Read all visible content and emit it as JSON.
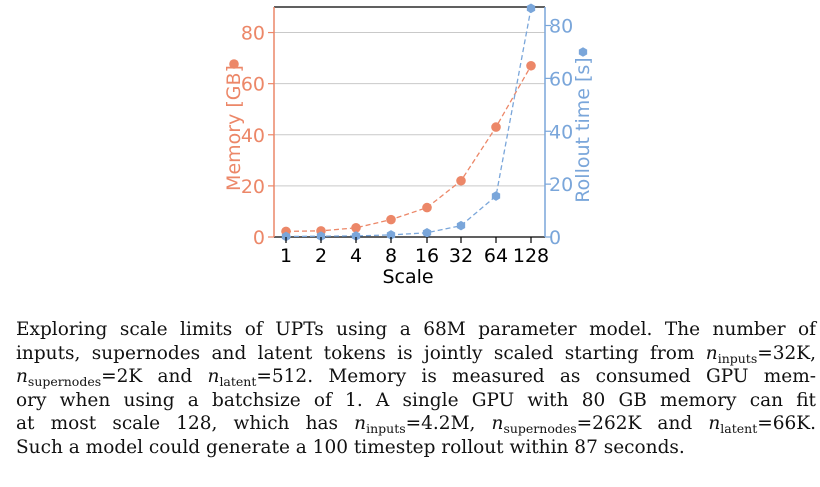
{
  "colors": {
    "memory": "#ec8768",
    "rollout": "#7aa6da",
    "grid": "#c9c9c9",
    "axis": "#000000"
  },
  "chart_data": {
    "type": "line",
    "categories": [
      "1",
      "2",
      "4",
      "8",
      "16",
      "32",
      "64",
      "128"
    ],
    "xlabel": "Scale",
    "y_left": {
      "label": "Memory [GB]",
      "ylim": [
        0,
        90
      ],
      "ticks": [
        0,
        20,
        40,
        60,
        80
      ]
    },
    "y_right": {
      "label": "Rollout time [s]",
      "ylim": [
        0,
        87
      ],
      "ticks": [
        0,
        20,
        40,
        60,
        80
      ]
    },
    "grid": "horizontal",
    "series": [
      {
        "name": "Memory [GB]",
        "axis": "left",
        "marker": "circle",
        "line": "dashed",
        "values": [
          2.2,
          2.4,
          3.6,
          6.8,
          11.5,
          22.0,
          43.0,
          67.0
        ]
      },
      {
        "name": "Rollout time [s]",
        "axis": "right",
        "marker": "hexagon",
        "line": "dashed",
        "values": [
          0.2,
          0.3,
          0.4,
          0.8,
          1.6,
          4.3,
          15.5,
          86.5
        ]
      }
    ]
  },
  "caption": {
    "line1": "Exploring scale limits of UPTs using a 68M parameter model. The number of",
    "line2a": "inputs, supernodes and latent tokens is jointly scaled starting from ",
    "n": "n",
    "sub_inputs": "inputs",
    "eq32k": "=32K,",
    "sub_supernodes": "supernodes",
    "eq2k": "=2K and ",
    "sub_latent": "latent",
    "eq512": "=512. Memory is measured as consumed GPU mem-",
    "line4": "ory when using a batchsize of 1. A single GPU with 80 GB memory can fit",
    "line5a": "at most scale 128, which has ",
    "eq42m": "=4.2M, ",
    "eq262k": "=262K and ",
    "eq66k": "=66K.",
    "line6": "Such a model could generate a 100 timestep rollout within 87 seconds."
  }
}
